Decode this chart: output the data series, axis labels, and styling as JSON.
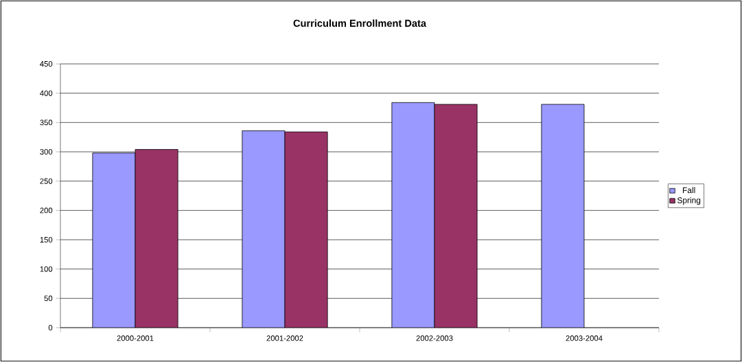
{
  "chart_data": {
    "type": "bar",
    "title": "Curriculum Enrollment Data",
    "categories": [
      "2000-2001",
      "2001-2002",
      "2002-2003",
      "2003-2004"
    ],
    "series": [
      {
        "name": "Fall",
        "color": "#9999ff",
        "values": [
          298,
          336,
          384,
          381
        ]
      },
      {
        "name": "Spring",
        "color": "#993366",
        "values": [
          304,
          334,
          381,
          null
        ]
      }
    ],
    "ylim": [
      0,
      450
    ],
    "yticks": [
      0,
      50,
      100,
      150,
      200,
      250,
      300,
      350,
      400,
      450
    ],
    "grid": "y",
    "legend": "right"
  }
}
